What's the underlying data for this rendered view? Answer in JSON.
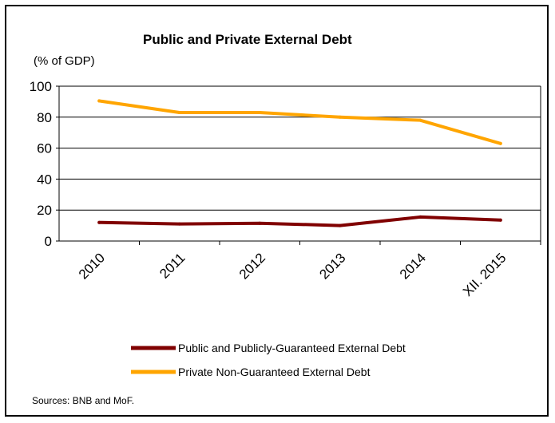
{
  "chart_data": {
    "type": "line",
    "title": "Public and Private External Debt",
    "unit_label": "(% of GDP)",
    "categories": [
      "2010",
      "2011",
      "2012",
      "2013",
      "2014",
      "XII. 2015"
    ],
    "ylim": [
      0,
      100
    ],
    "yticks": [
      "0",
      "20",
      "40",
      "60",
      "80",
      "100"
    ],
    "grid": true,
    "series": [
      {
        "name": "Public and Publicly-Guaranteed External Debt",
        "color": "#800000",
        "values": [
          12,
          11,
          11.5,
          10,
          15.5,
          13.5
        ]
      },
      {
        "name": "Private Non-Guaranteed External Debt",
        "color": "#FFA500",
        "values": [
          90.5,
          83,
          83,
          80,
          78,
          63
        ]
      }
    ],
    "legend_position": "bottom",
    "source": "Sources: BNB and MoF."
  }
}
